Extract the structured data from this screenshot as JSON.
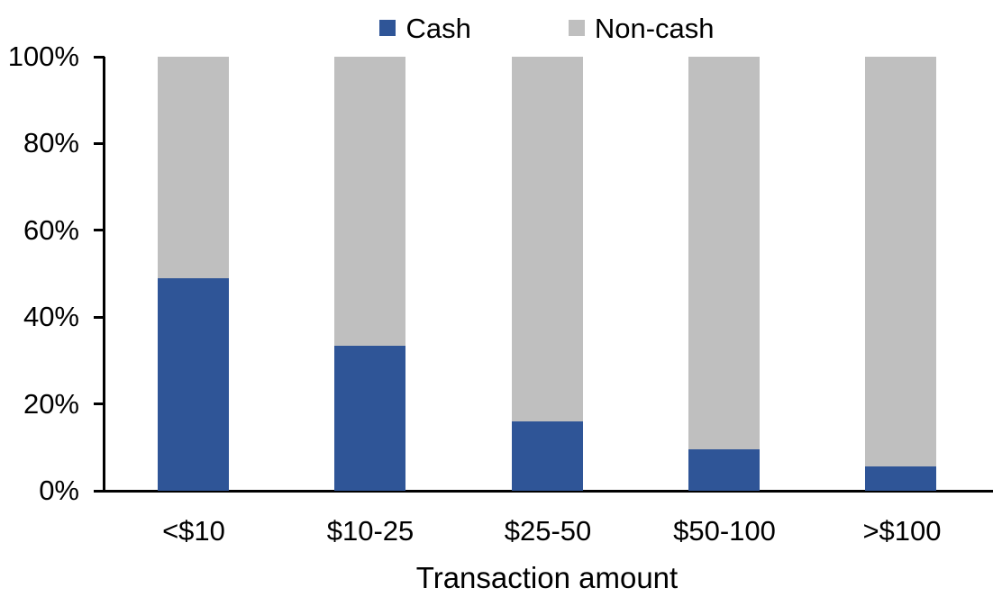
{
  "chart_data": {
    "type": "bar",
    "variant": "stacked-100-percent",
    "title": "",
    "categories": [
      "<$10",
      "$10-25",
      "$25-50",
      "$50-100",
      ">$100"
    ],
    "series": [
      {
        "name": "Cash",
        "color": "#2F5597",
        "values": [
          49,
          33.5,
          16,
          9.5,
          5.5
        ]
      },
      {
        "name": "Non-cash",
        "color": "#BFBFBF",
        "values": [
          51,
          66.5,
          84,
          90.5,
          94.5
        ]
      }
    ],
    "xlabel": "Transaction amount",
    "ylabel": "",
    "y_ticks": [
      "0%",
      "20%",
      "40%",
      "60%",
      "80%",
      "100%"
    ],
    "ylim": [
      0,
      100
    ],
    "legend_position": "top",
    "grid": false,
    "axis_color": "#000000",
    "background_color": "#FFFFFF",
    "text_color": "#000000"
  }
}
